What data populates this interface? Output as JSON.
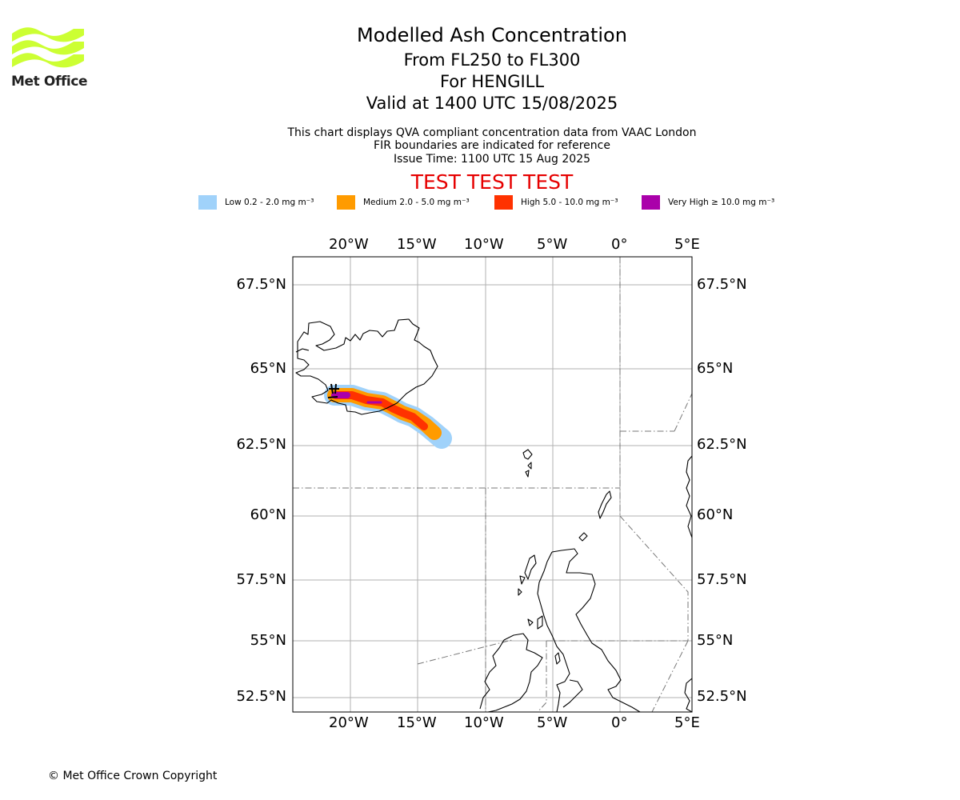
{
  "brand": {
    "name": "Met Office",
    "accent": "#ccff33"
  },
  "header": {
    "title": "Modelled Ash Concentration",
    "levels": "From FL250 to FL300",
    "volcano": "For HENGILL",
    "valid": "Valid at 1400 UTC 15/08/2025",
    "note1": "This chart displays QVA compliant concentration data from VAAC London",
    "note2": "FIR boundaries are indicated for reference",
    "issue": "Issue Time: 1100 UTC 15 Aug 2025",
    "test_banner": "TEST TEST TEST"
  },
  "legend": [
    {
      "label": "Low 0.2 - 2.0 mg m⁻³",
      "color": "#a0d2fa"
    },
    {
      "label": "Medium 2.0 - 5.0 mg m⁻³",
      "color": "#ff9b00"
    },
    {
      "label": "High 5.0 - 10.0 mg m⁻³",
      "color": "#ff3200"
    },
    {
      "label": "Very High ≥ 10.0 mg m⁻³",
      "color": "#aa00aa"
    }
  ],
  "map": {
    "lon_ticks": [
      "20°W",
      "15°W",
      "10°W",
      "5°W",
      "0°",
      "5°E"
    ],
    "lat_ticks": [
      "67.5°N",
      "65°N",
      "62.5°N",
      "60°N",
      "57.5°N",
      "55°N",
      "52.5°N"
    ]
  },
  "footer": {
    "copyright": "© Met Office Crown Copyright"
  }
}
